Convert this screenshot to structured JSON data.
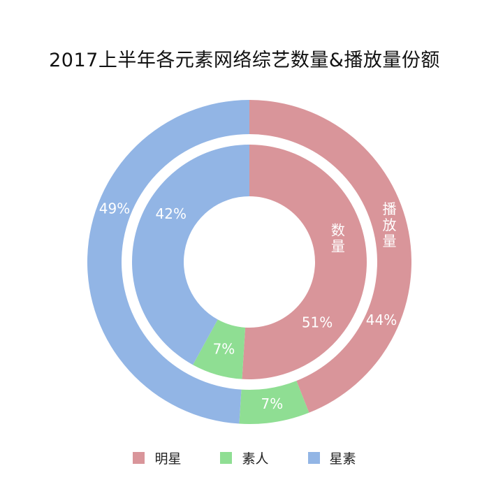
{
  "title": "2017上半年各元素网络综艺数量&播放量份额",
  "chart_data": {
    "type": "pie",
    "subtype": "nested-donut",
    "categories": [
      "明星",
      "素人",
      "星素"
    ],
    "colors": [
      "#D9959A",
      "#8FDE93",
      "#92B5E5"
    ],
    "series": [
      {
        "name": "数量",
        "ring": "inner",
        "values": [
          51,
          7,
          42
        ]
      },
      {
        "name": "播放量",
        "ring": "outer",
        "values": [
          44,
          7,
          49
        ]
      }
    ],
    "unit": "%",
    "legend_position": "bottom"
  }
}
